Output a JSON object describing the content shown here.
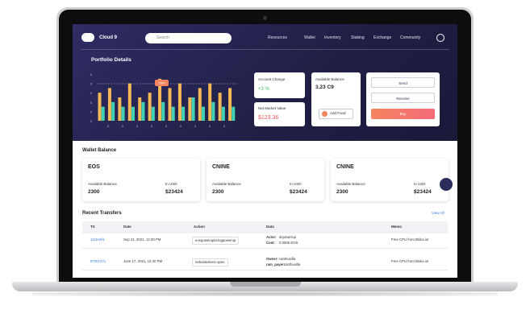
{
  "header": {
    "brand": "Cloud 9",
    "search_placeholder": "Search",
    "nav": [
      "Resources",
      "Wallet",
      "Inventory",
      "Staking",
      "Exchange",
      "Community"
    ]
  },
  "portfolio": {
    "title": "Portfolio Details",
    "badge": "16%",
    "chart": {
      "y_labels": [
        "0",
        "0",
        "0",
        "0",
        "0",
        "0"
      ],
      "x_labels": [
        "0",
        "0",
        "0",
        "0",
        "0",
        "0",
        "0",
        "0",
        "0"
      ],
      "ylim": [
        0,
        10
      ],
      "series": [
        {
          "color": "#f7b955",
          "values": [
            6,
            7,
            5,
            8,
            5,
            6,
            9,
            7,
            8,
            5,
            7,
            8,
            6,
            7
          ]
        },
        {
          "color": "#3fd3b3",
          "values": [
            3,
            4,
            3,
            3,
            4,
            3,
            4,
            3,
            3,
            5,
            3,
            4,
            3,
            3
          ]
        }
      ]
    },
    "account_change": {
      "label": "Account Change",
      "value": "+3 %"
    },
    "net_market_value": {
      "label": "Net Market Value",
      "value": "$123.36"
    },
    "available_balance": {
      "label": "Available Balance",
      "value": "3.23 C9",
      "button": "Add Fund"
    },
    "actions": [
      "Send",
      "Receive",
      "Buy"
    ]
  },
  "wallet": {
    "title": "Wallet Balance",
    "cards": [
      {
        "name": "EOS",
        "balance_label": "Available Balance",
        "balance": "2300",
        "usd_label": "In USD",
        "usd": "$23424"
      },
      {
        "name": "CNINE",
        "balance_label": "Available Balance",
        "balance": "2300",
        "usd_label": "In USD",
        "usd": "$23424"
      },
      {
        "name": "CNINE",
        "balance_label": "Available Balance",
        "balance": "2300",
        "usd_label": "In USD",
        "usd": "$23424"
      }
    ]
  },
  "transfers": {
    "title": "Recent Transfers",
    "view_all": "View All",
    "columns": [
      "TX",
      "Date",
      "Action",
      "Data",
      "Memo"
    ],
    "rows": [
      {
        "tx": "12cb4ef1",
        "date": "Sep 21, 2021, 12:30 PM",
        "action": "eosqowerupia-logpowerup",
        "data": [
          [
            "Actor:",
            "dcpowerup"
          ],
          [
            "Cost:",
            "0.0006 EOS"
          ]
        ],
        "memo": "Free CPU from Bloks.io!"
      },
      {
        "tx": "97301271",
        "date": "June 17, 2021, 12:30 PM",
        "action": "nebulatokens-open",
        "data": [
          [
            "Owner:",
            "canthuxilla"
          ],
          [
            "ram_payer:",
            "canthuxilla"
          ]
        ],
        "memo": "Free CPU from Bloks.io!"
      }
    ]
  }
}
